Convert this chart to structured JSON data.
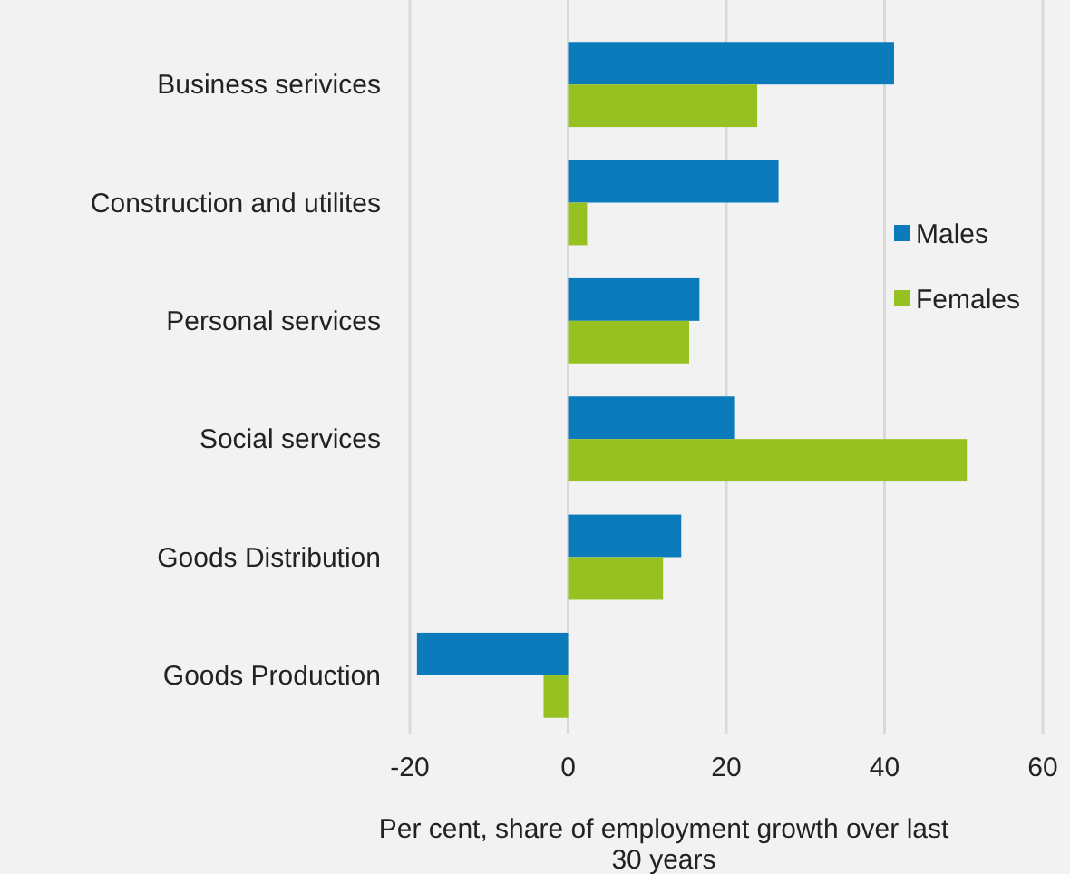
{
  "chart_data": {
    "type": "bar",
    "orientation": "horizontal",
    "xlabel": "Per cent, share of employment growth over last 30 years",
    "categories": [
      "Business serivices",
      "Construction and utilites",
      "Personal services",
      "Social services",
      "Goods Distribution",
      "Goods Production"
    ],
    "series": [
      {
        "name": "Males",
        "color": "#0b7bbb",
        "values": [
          41.2,
          26.6,
          16.6,
          21.1,
          14.3,
          -19.1
        ]
      },
      {
        "name": "Females",
        "color": "#97c121",
        "values": [
          23.9,
          2.4,
          15.3,
          50.4,
          12.0,
          -3.1
        ]
      }
    ],
    "xlim": [
      -20,
      60
    ],
    "xticks": [
      -20,
      0,
      20,
      40,
      60
    ],
    "grid": "x",
    "legend": "right"
  }
}
